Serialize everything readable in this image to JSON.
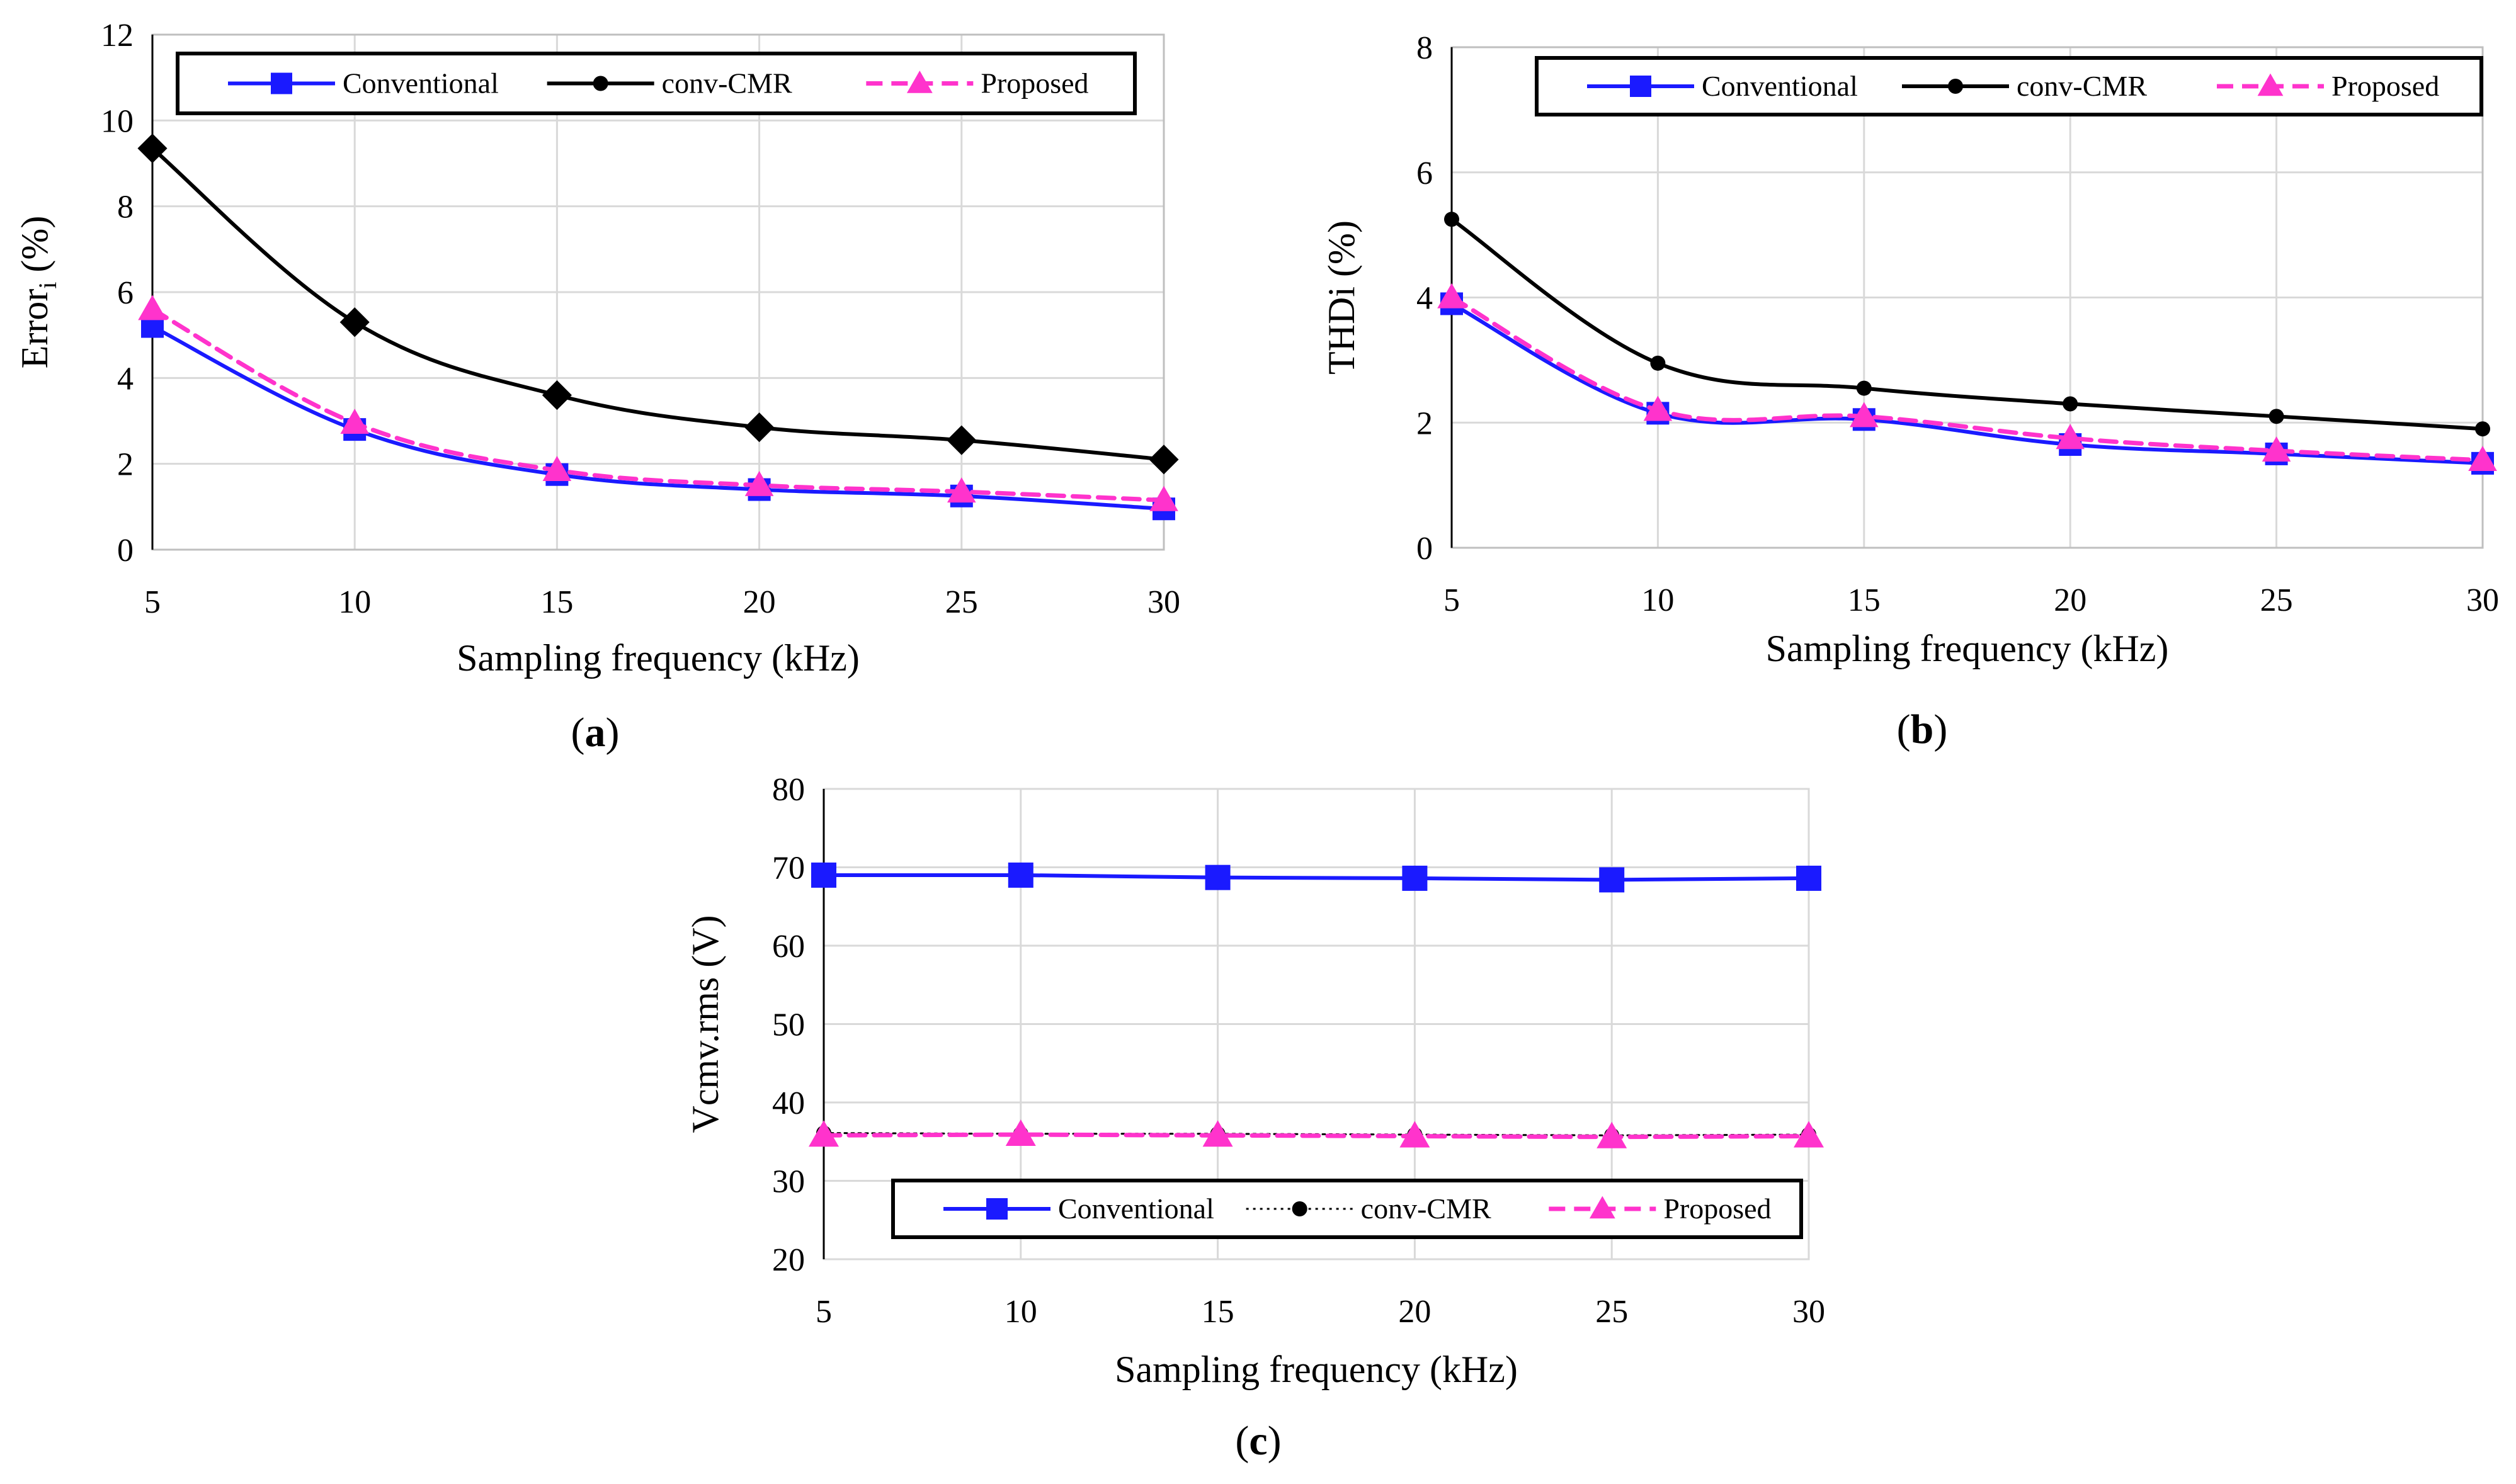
{
  "chart_data": [
    {
      "type": "line",
      "id": "a",
      "caption_letter": "a",
      "xlabel": "Sampling frequency (kHz)",
      "ylabel": "Error",
      "ylabel_sub": "i",
      "ylabel_suffix": " (%)",
      "x": [
        5,
        10,
        15,
        20,
        25,
        30
      ],
      "xticks": [
        "5",
        "10",
        "15",
        "20",
        "25",
        "30"
      ],
      "ylim": [
        0,
        12
      ],
      "yticks": [
        "0",
        "2",
        "4",
        "6",
        "8",
        "10",
        "12"
      ],
      "grid": true,
      "legend_position": "top",
      "series": [
        {
          "name": "Conventional",
          "values": [
            5.2,
            2.8,
            1.75,
            1.4,
            1.25,
            0.95
          ]
        },
        {
          "name": "conv-CMR",
          "values": [
            9.35,
            5.3,
            3.6,
            2.85,
            2.55,
            2.1
          ]
        },
        {
          "name": "Proposed",
          "values": [
            5.6,
            2.95,
            1.85,
            1.5,
            1.35,
            1.15
          ]
        }
      ]
    },
    {
      "type": "line",
      "id": "b",
      "caption_letter": "b",
      "xlabel": "Sampling frequency (kHz)",
      "ylabel": "THDi (%)",
      "ylabel_sub": "",
      "ylabel_suffix": "",
      "x": [
        5,
        10,
        15,
        20,
        25,
        30
      ],
      "xticks": [
        "5",
        "10",
        "15",
        "20",
        "25",
        "30"
      ],
      "ylim": [
        0,
        8
      ],
      "yticks": [
        "0",
        "2",
        "4",
        "6",
        "8"
      ],
      "grid": true,
      "legend_position": "top",
      "series": [
        {
          "name": "Conventional",
          "values": [
            3.9,
            2.15,
            2.05,
            1.65,
            1.5,
            1.35
          ]
        },
        {
          "name": "conv-CMR",
          "values": [
            5.25,
            2.95,
            2.55,
            2.3,
            2.1,
            1.9
          ]
        },
        {
          "name": "Proposed",
          "values": [
            4.0,
            2.2,
            2.1,
            1.75,
            1.55,
            1.4
          ]
        }
      ]
    },
    {
      "type": "line",
      "id": "c",
      "caption_letter": "c",
      "xlabel": "Sampling frequency (kHz)",
      "ylabel": "Vcmv.rms (V)",
      "ylabel_sub": "",
      "ylabel_suffix": "",
      "x": [
        5,
        10,
        15,
        20,
        25,
        30
      ],
      "xticks": [
        "5",
        "10",
        "15",
        "20",
        "25",
        "30"
      ],
      "ylim": [
        20,
        80
      ],
      "yticks": [
        "20",
        "30",
        "40",
        "50",
        "60",
        "70",
        "80"
      ],
      "grid": true,
      "legend_position": "bottom",
      "series": [
        {
          "name": "Conventional",
          "values": [
            69.0,
            69.0,
            68.7,
            68.6,
            68.4,
            68.6
          ]
        },
        {
          "name": "conv-CMR",
          "values": [
            36.1,
            36.0,
            36.0,
            35.9,
            35.8,
            35.9
          ]
        },
        {
          "name": "Proposed",
          "values": [
            35.8,
            35.9,
            35.8,
            35.7,
            35.6,
            35.7
          ]
        }
      ]
    }
  ],
  "colors": {
    "Conventional": "#1a1aff",
    "conv-CMR": "#000000",
    "Proposed": "#ff33cc",
    "grid": "#d9d9d9",
    "axis": "#000000"
  }
}
